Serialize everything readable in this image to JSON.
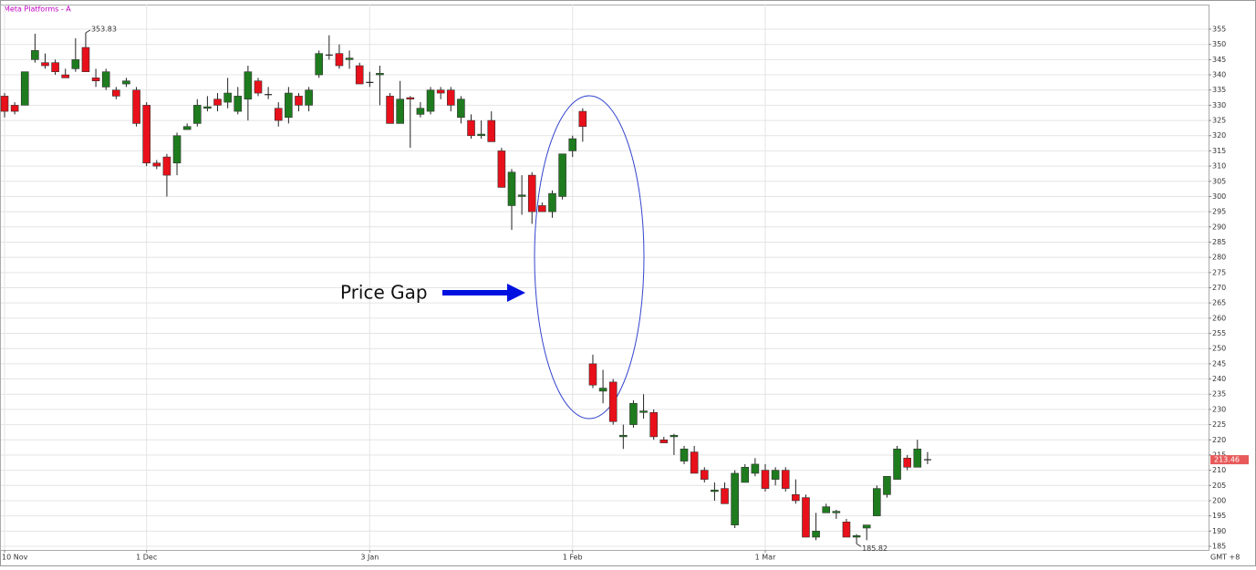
{
  "chart_data": {
    "type": "candlestick",
    "title": "Meta Platforms - A",
    "categories": [
      "10 Nov",
      null,
      null,
      null,
      null,
      null,
      null,
      null,
      null,
      null,
      null,
      null,
      null,
      null,
      "1 Dec",
      null,
      null,
      null,
      null,
      null,
      null,
      null,
      null,
      null,
      null,
      null,
      null,
      null,
      null,
      null,
      null,
      null,
      null,
      null,
      null,
      null,
      "3 Jan",
      null,
      null,
      null,
      null,
      null,
      null,
      null,
      null,
      null,
      null,
      null,
      null,
      null,
      null,
      null,
      null,
      null,
      null,
      null,
      "1 Feb",
      null,
      null,
      null,
      null,
      null,
      null,
      null,
      null,
      null,
      null,
      null,
      null,
      null,
      null,
      null,
      null,
      null,
      null,
      "1 Mar",
      null,
      null,
      null,
      null,
      null,
      null,
      null,
      null,
      null,
      null,
      null,
      null,
      null,
      null,
      null,
      null
    ],
    "open": [
      333,
      330,
      330,
      345,
      344,
      344,
      340,
      342,
      349,
      339,
      336,
      335,
      337,
      335,
      330,
      311,
      313,
      311,
      322,
      324,
      329,
      332,
      331,
      328,
      332,
      338,
      333.5,
      329,
      326,
      333,
      330,
      340,
      346.5,
      347,
      345,
      343,
      337.5,
      340,
      333,
      324,
      332.5,
      327,
      328,
      335,
      335,
      326,
      325,
      320,
      325,
      315,
      297,
      300,
      307,
      297,
      295,
      300,
      315,
      328,
      245,
      236,
      239,
      221,
      225,
      229,
      229,
      220,
      221,
      213,
      216,
      210,
      203,
      204,
      192,
      206,
      209,
      210,
      207,
      210,
      202,
      201,
      188,
      196,
      196,
      193,
      188,
      191,
      195,
      202,
      207,
      214,
      211,
      213.2
    ],
    "high": [
      334,
      331,
      341,
      353.5,
      347,
      345,
      342,
      352,
      353.83,
      342,
      342,
      336,
      339,
      336,
      331,
      312,
      314,
      321,
      324,
      332,
      333,
      334,
      339,
      336,
      343,
      339,
      336,
      331,
      336,
      334,
      336,
      348,
      353,
      350,
      348,
      344,
      341,
      343,
      334,
      338,
      333,
      331,
      336,
      336,
      336,
      333,
      327,
      325,
      328,
      316,
      309,
      307,
      308,
      298,
      302,
      314,
      320,
      329,
      248,
      243,
      240,
      225,
      233,
      235,
      230,
      221,
      222,
      218,
      218,
      211,
      206,
      206,
      210,
      212,
      214,
      212,
      211,
      211,
      207,
      202,
      196,
      199,
      197,
      194,
      189,
      192,
      205,
      208,
      218,
      215,
      220,
      216
    ],
    "low": [
      326,
      327,
      330,
      344,
      342,
      340,
      339,
      341,
      341,
      336,
      335,
      332,
      336,
      323,
      310,
      309,
      300,
      307,
      322,
      323,
      328,
      328,
      329,
      327,
      325,
      333,
      332,
      323,
      324,
      328,
      328,
      339,
      345,
      342,
      342,
      337,
      336,
      330,
      324,
      324,
      316,
      326,
      327,
      332,
      328,
      324,
      319,
      319,
      318,
      303,
      289,
      294,
      291,
      295,
      293,
      299,
      313,
      318,
      237,
      232,
      225,
      217,
      224,
      227,
      220,
      219,
      215,
      212,
      209,
      206,
      200,
      199,
      191,
      206,
      208,
      203,
      205,
      203,
      199,
      188,
      187,
      196,
      194,
      188,
      185.82,
      187,
      195,
      201,
      207,
      210,
      211,
      212
    ],
    "close": [
      328,
      328,
      341,
      348,
      343,
      341,
      339,
      345,
      341,
      338,
      341,
      333,
      338,
      324,
      311,
      310,
      307,
      320,
      323,
      330,
      329.5,
      330,
      334,
      333,
      341,
      334,
      333.5,
      325,
      334,
      330,
      335,
      347,
      346.5,
      343,
      345.5,
      337,
      337.5,
      340.5,
      324,
      332,
      332,
      329,
      335,
      334,
      330,
      332,
      320,
      320.5,
      318,
      303,
      308,
      300.5,
      295,
      295,
      301,
      314,
      319,
      323,
      238,
      237,
      226,
      221.5,
      232,
      229.5,
      221,
      219,
      221.5,
      217,
      209,
      207,
      203.5,
      199,
      209,
      211,
      212,
      204,
      210,
      204,
      200,
      188,
      190,
      198,
      196.5,
      188,
      188.5,
      192,
      204,
      208,
      217,
      211,
      217,
      213.46
    ],
    "up_color": "#1e7b1e",
    "down_color": "#e8101a",
    "ylim": [
      183.8,
      363.1
    ],
    "yticks": [
      185,
      190,
      195,
      200,
      205,
      210,
      215,
      220,
      225,
      230,
      235,
      240,
      245,
      250,
      255,
      260,
      265,
      270,
      275,
      280,
      285,
      290,
      295,
      300,
      305,
      310,
      315,
      320,
      325,
      330,
      335,
      340,
      345,
      350,
      355
    ],
    "grid": true,
    "annotation": "Price Gap",
    "timezone": "GMT +8"
  }
}
